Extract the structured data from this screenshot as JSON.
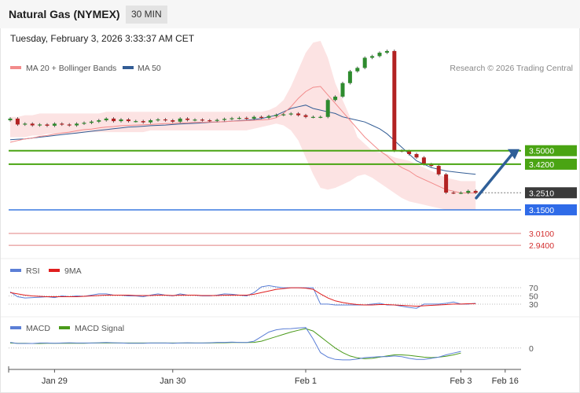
{
  "header": {
    "instrument": "Natural Gas (NYMEX)",
    "interval": "30 MIN",
    "datetime": "Tuesday, February 3, 2026 3:33:37 AM CET"
  },
  "price_panel": {
    "legend": [
      {
        "label": "MA 20 + Bollinger Bands",
        "color": "#f28b8b"
      },
      {
        "label": "MA 50",
        "color": "#335d95"
      }
    ],
    "credit": "Research © 2026 Trading Central"
  },
  "rsi_panel": {
    "legend": [
      {
        "label": "RSI",
        "color": "#5b7fd6"
      },
      {
        "label": "9MA",
        "color": "#e01f1f"
      }
    ]
  },
  "macd_panel": {
    "legend": [
      {
        "label": "MACD",
        "color": "#5b7fd6"
      },
      {
        "label": "MACD Signal",
        "color": "#4a9a1a"
      }
    ]
  },
  "chart_data": [
    {
      "type": "candlestick",
      "title": "",
      "ylim": [
        2.88,
        3.95
      ],
      "x_labels": [
        {
          "label": "Jan 29",
          "index": 6
        },
        {
          "label": "Jan 30",
          "index": 22
        },
        {
          "label": "Feb 1",
          "index": 40
        },
        {
          "label": "Feb 3",
          "index": 61
        },
        {
          "label": "Feb 16",
          "index": 67
        }
      ],
      "levels": [
        {
          "value": "3.5000",
          "role": "resistance",
          "color": "#4aa413",
          "label_bg": "#4aa413"
        },
        {
          "value": "3.4200",
          "role": "resistance",
          "color": "#4aa413",
          "label_bg": "#4aa413"
        },
        {
          "value": "3.2510",
          "role": "last price",
          "color": "#666666",
          "label_bg": "#3a3a3a"
        },
        {
          "value": "3.1500",
          "role": "pivot",
          "color": "#3a78e0",
          "label_bg": "#2f6be8"
        },
        {
          "value": "3.0100",
          "role": "support",
          "color": "#e08080",
          "label_bg": ""
        },
        {
          "value": "2.9400",
          "role": "support",
          "color": "#e08080",
          "label_bg": ""
        }
      ],
      "close": [
        3.69,
        3.655,
        3.66,
        3.65,
        3.655,
        3.648,
        3.66,
        3.655,
        3.65,
        3.66,
        3.665,
        3.672,
        3.68,
        3.69,
        3.675,
        3.685,
        3.675,
        3.675,
        3.668,
        3.68,
        3.685,
        3.68,
        3.672,
        3.69,
        3.682,
        3.684,
        3.68,
        3.678,
        3.682,
        3.688,
        3.692,
        3.694,
        3.69,
        3.7,
        3.695,
        3.705,
        3.712,
        3.715,
        3.72,
        3.71,
        3.7,
        3.7,
        3.7,
        3.8,
        3.82,
        3.9,
        3.97,
        3.99,
        4.05,
        4.06,
        4.08,
        4.09,
        3.5,
        3.498,
        3.48,
        3.46,
        3.42,
        3.41,
        3.36,
        3.252,
        3.251,
        3.251,
        3.262,
        3.251
      ],
      "ma20": [
        3.55,
        3.56,
        3.57,
        3.575,
        3.585,
        3.59,
        3.598,
        3.605,
        3.61,
        3.618,
        3.625,
        3.628,
        3.635,
        3.64,
        3.643,
        3.648,
        3.65,
        3.652,
        3.653,
        3.655,
        3.658,
        3.66,
        3.66,
        3.665,
        3.665,
        3.668,
        3.668,
        3.67,
        3.67,
        3.672,
        3.674,
        3.676,
        3.678,
        3.68,
        3.682,
        3.685,
        3.695,
        3.72,
        3.76,
        3.81,
        3.85,
        3.875,
        3.88,
        3.83,
        3.78,
        3.73,
        3.68,
        3.63,
        3.58,
        3.54,
        3.5,
        3.47,
        3.43,
        3.4,
        3.38,
        3.35,
        3.33,
        3.31,
        3.29,
        3.27,
        3.26,
        3.25,
        3.25,
        3.25
      ],
      "ma50": [
        3.565,
        3.568,
        3.57,
        3.575,
        3.58,
        3.585,
        3.59,
        3.595,
        3.6,
        3.605,
        3.61,
        3.615,
        3.62,
        3.625,
        3.63,
        3.635,
        3.64,
        3.642,
        3.645,
        3.648,
        3.65,
        3.652,
        3.655,
        3.658,
        3.66,
        3.662,
        3.665,
        3.668,
        3.67,
        3.672,
        3.675,
        3.678,
        3.68,
        3.685,
        3.69,
        3.7,
        3.71,
        3.73,
        3.75,
        3.76,
        3.77,
        3.75,
        3.74,
        3.73,
        3.72,
        3.7,
        3.69,
        3.68,
        3.67,
        3.65,
        3.63,
        3.6,
        3.56,
        3.52,
        3.48,
        3.44,
        3.42,
        3.4,
        3.39,
        3.38,
        3.375,
        3.37,
        3.365,
        3.36
      ],
      "bb_upper": [
        3.7,
        3.7,
        3.71,
        3.71,
        3.72,
        3.72,
        3.72,
        3.72,
        3.72,
        3.72,
        3.72,
        3.72,
        3.72,
        3.73,
        3.73,
        3.73,
        3.73,
        3.73,
        3.73,
        3.73,
        3.73,
        3.73,
        3.73,
        3.73,
        3.73,
        3.73,
        3.73,
        3.73,
        3.73,
        3.73,
        3.73,
        3.73,
        3.73,
        3.73,
        3.73,
        3.74,
        3.76,
        3.8,
        3.88,
        3.98,
        4.08,
        4.14,
        4.15,
        4.05,
        3.9,
        3.8,
        3.7,
        3.58,
        3.54,
        3.5,
        3.49,
        3.48,
        3.46,
        3.45,
        3.44,
        3.42,
        3.4,
        3.38,
        3.36,
        3.34,
        3.33,
        3.32,
        3.32,
        3.32
      ],
      "bb_lower": [
        3.58,
        3.58,
        3.58,
        3.59,
        3.59,
        3.6,
        3.6,
        3.6,
        3.6,
        3.6,
        3.61,
        3.61,
        3.61,
        3.61,
        3.61,
        3.61,
        3.61,
        3.61,
        3.61,
        3.62,
        3.62,
        3.62,
        3.62,
        3.62,
        3.62,
        3.62,
        3.62,
        3.62,
        3.62,
        3.62,
        3.62,
        3.62,
        3.62,
        3.63,
        3.64,
        3.65,
        3.66,
        3.65,
        3.62,
        3.56,
        3.46,
        3.36,
        3.28,
        3.27,
        3.28,
        3.3,
        3.32,
        3.35,
        3.36,
        3.34,
        3.31,
        3.28,
        3.25,
        3.22,
        3.2,
        3.19,
        3.18,
        3.17,
        3.16,
        3.15,
        3.15,
        3.15,
        3.15,
        3.15
      ]
    },
    {
      "type": "line",
      "title": "",
      "ylim": [
        5,
        95
      ],
      "yticks": [
        "70",
        "50",
        "30"
      ],
      "rsi": [
        60,
        48,
        45,
        46,
        47,
        48,
        46,
        50,
        48,
        50,
        49,
        52,
        55,
        55,
        52,
        52,
        50,
        50,
        48,
        52,
        55,
        52,
        50,
        55,
        52,
        52,
        50,
        50,
        52,
        55,
        54,
        52,
        50,
        58,
        72,
        75,
        72,
        70,
        70,
        70,
        70,
        70,
        30,
        30,
        28,
        28,
        28,
        28,
        28,
        30,
        32,
        28,
        28,
        25,
        22,
        20,
        30,
        30,
        30,
        32,
        35,
        30,
        30,
        32
      ],
      "rsi_ma9": [
        58,
        55,
        52,
        50,
        49,
        48,
        48,
        48,
        48,
        48,
        49,
        50,
        51,
        52,
        52,
        52,
        52,
        51,
        51,
        51,
        52,
        52,
        51,
        52,
        52,
        52,
        51,
        51,
        51,
        52,
        52,
        52,
        52,
        54,
        58,
        62,
        66,
        68,
        70,
        70,
        69,
        66,
        55,
        45,
        38,
        34,
        31,
        29,
        28,
        28,
        29,
        29,
        28,
        27,
        26,
        25,
        26,
        27,
        28,
        29,
        30,
        30,
        31,
        31
      ]
    },
    {
      "type": "line",
      "title": "",
      "ylim": [
        -0.08,
        0.12
      ],
      "yticks": [
        "0"
      ],
      "macd": [
        0.025,
        0.02,
        0.02,
        0.02,
        0.022,
        0.022,
        0.021,
        0.022,
        0.023,
        0.022,
        0.022,
        0.022,
        0.023,
        0.024,
        0.023,
        0.022,
        0.021,
        0.021,
        0.021,
        0.022,
        0.022,
        0.022,
        0.021,
        0.022,
        0.023,
        0.022,
        0.022,
        0.023,
        0.025,
        0.025,
        0.026,
        0.025,
        0.024,
        0.03,
        0.05,
        0.07,
        0.08,
        0.084,
        0.085,
        0.088,
        0.09,
        0.04,
        -0.02,
        -0.04,
        -0.05,
        -0.052,
        -0.052,
        -0.048,
        -0.042,
        -0.04,
        -0.038,
        -0.038,
        -0.035,
        -0.038,
        -0.045,
        -0.05,
        -0.05,
        -0.045,
        -0.04,
        -0.03,
        -0.022,
        -0.015
      ],
      "signal": [
        0.022,
        0.021,
        0.021,
        0.02,
        0.02,
        0.021,
        0.021,
        0.021,
        0.021,
        0.021,
        0.021,
        0.022,
        0.022,
        0.022,
        0.022,
        0.022,
        0.022,
        0.022,
        0.022,
        0.022,
        0.022,
        0.022,
        0.022,
        0.022,
        0.022,
        0.022,
        0.022,
        0.022,
        0.023,
        0.023,
        0.024,
        0.024,
        0.024,
        0.025,
        0.03,
        0.04,
        0.05,
        0.06,
        0.07,
        0.078,
        0.085,
        0.075,
        0.05,
        0.025,
        0.0,
        -0.02,
        -0.035,
        -0.043,
        -0.047,
        -0.045,
        -0.04,
        -0.035,
        -0.03,
        -0.03,
        -0.032,
        -0.036,
        -0.04,
        -0.042,
        -0.04,
        -0.036,
        -0.03,
        -0.022
      ]
    }
  ]
}
